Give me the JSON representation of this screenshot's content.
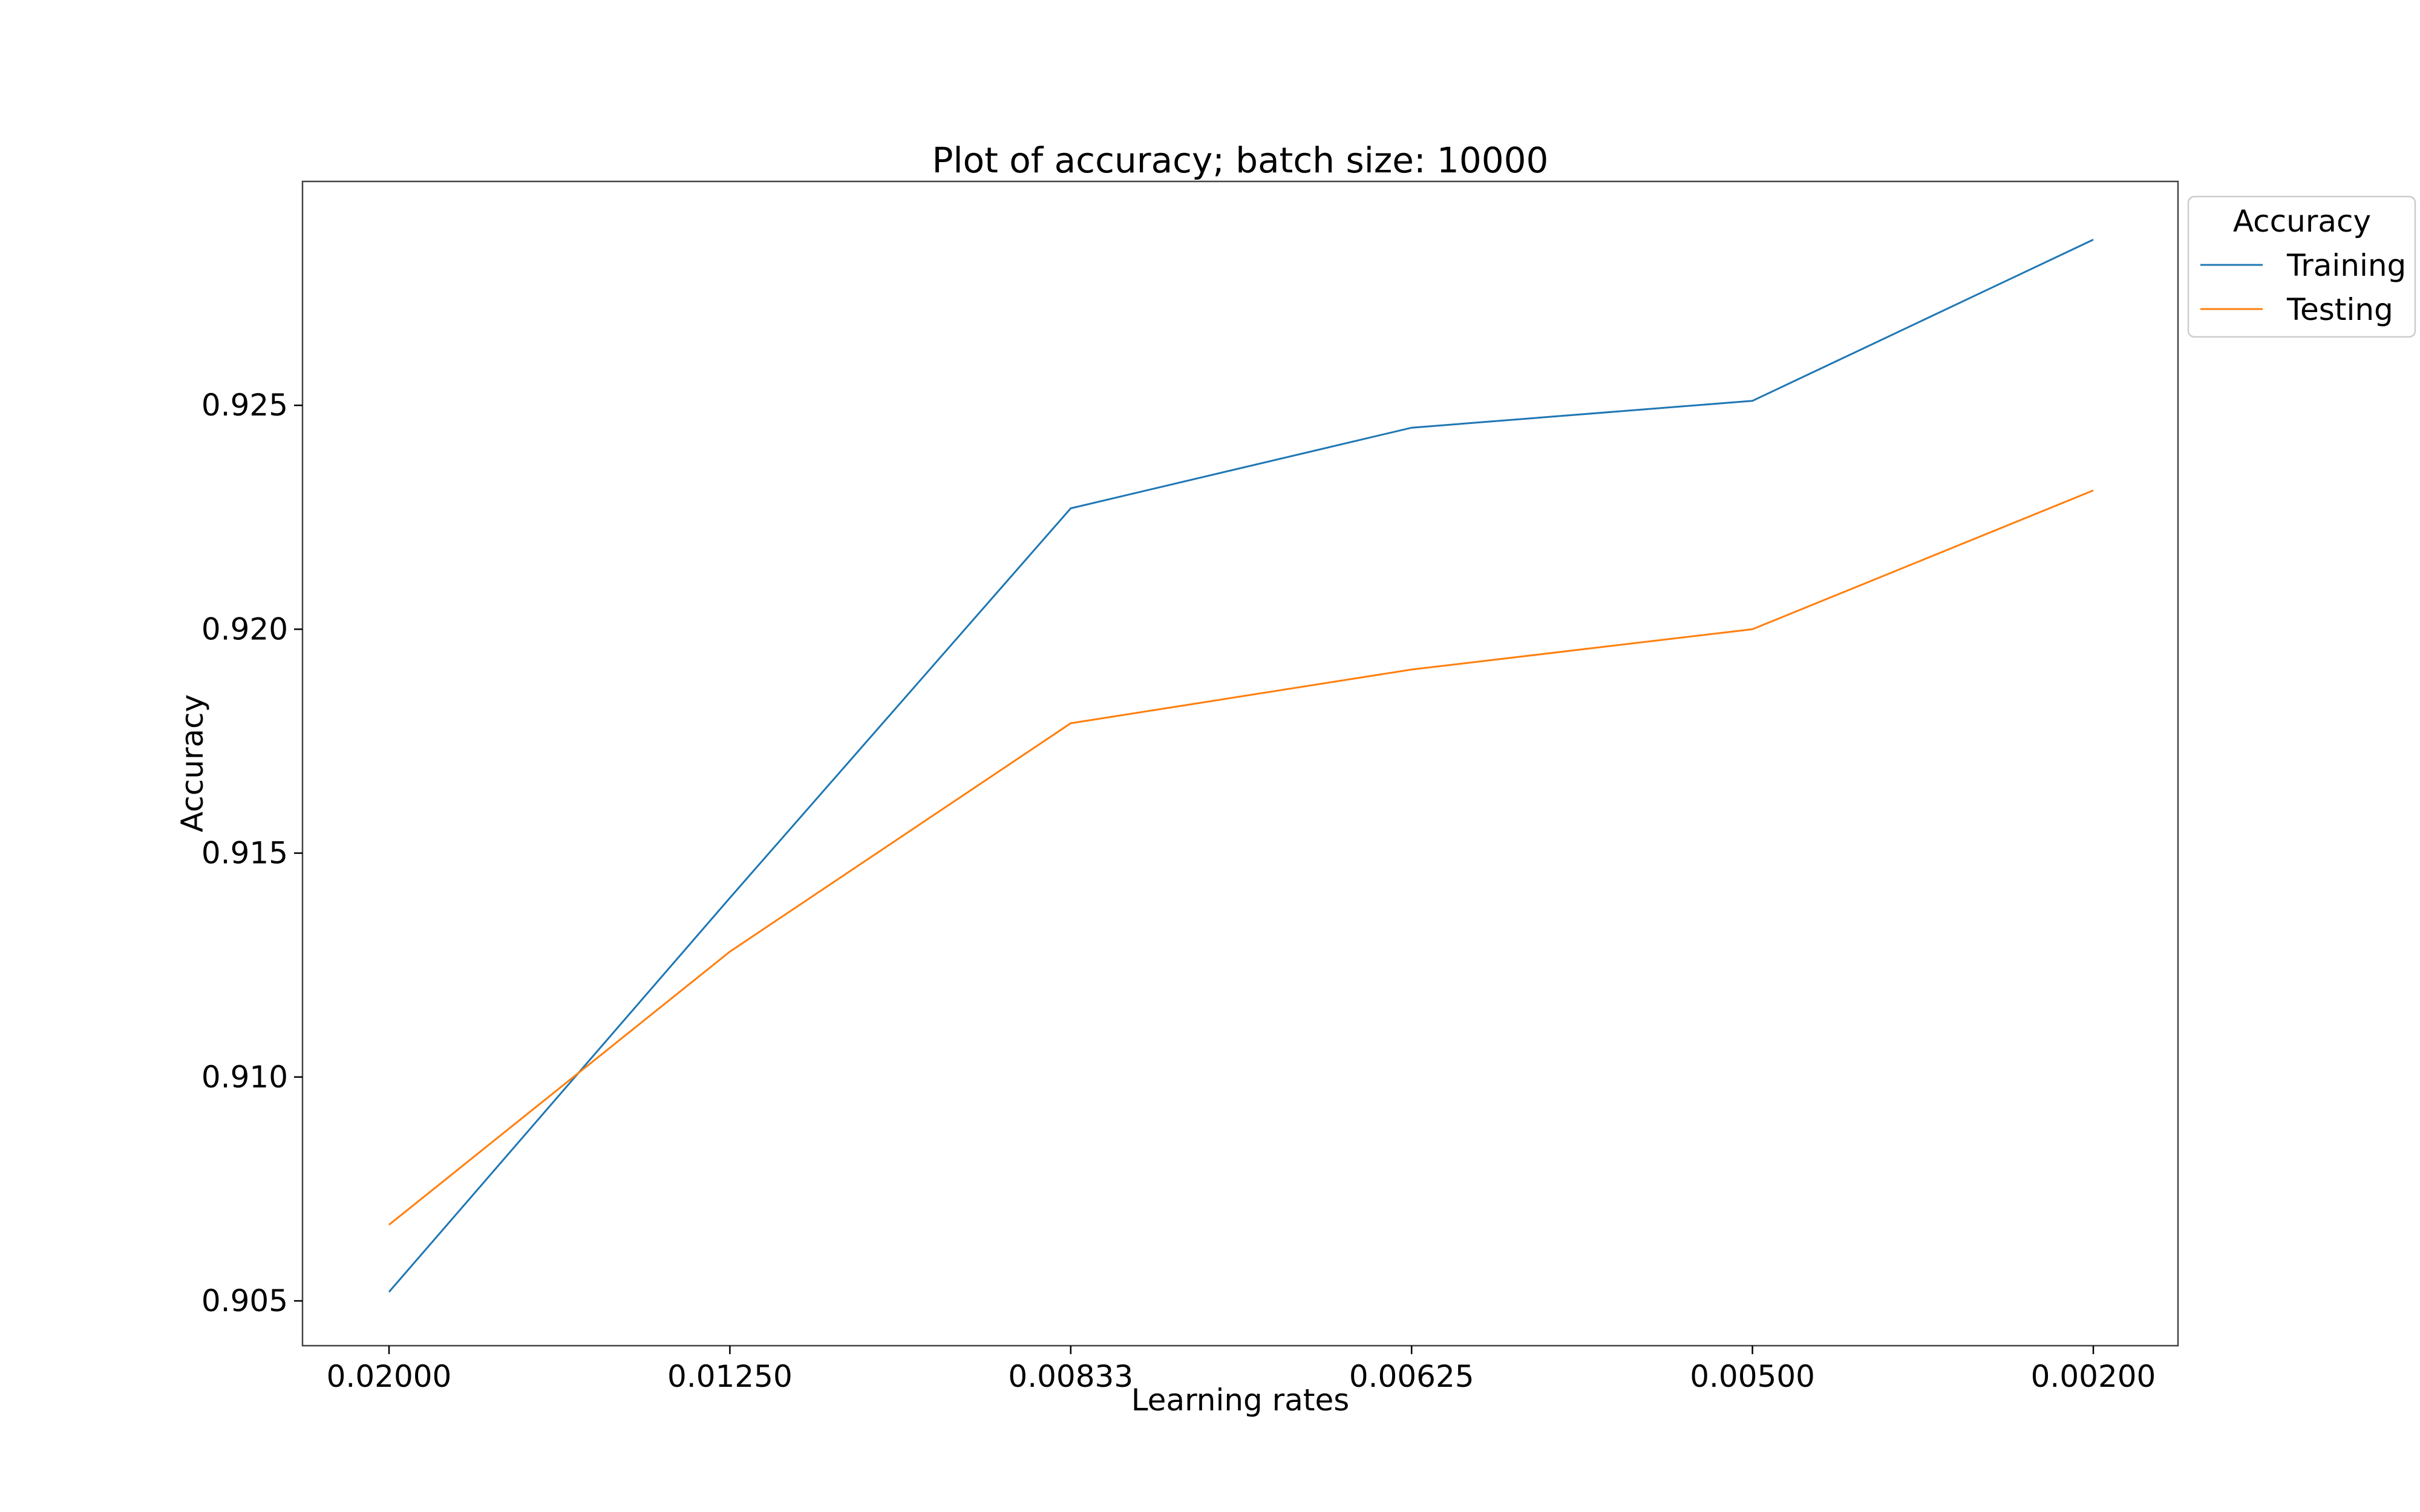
{
  "chart_data": {
    "type": "line",
    "title": "Plot of accuracy; batch size: 10000",
    "xlabel": "Learning rates",
    "ylabel": "Accuracy",
    "categories": [
      "0.02000",
      "0.01250",
      "0.00833",
      "0.00625",
      "0.00500",
      "0.00200"
    ],
    "ylim": [
      0.904,
      0.93
    ],
    "yticks": [
      "0.905",
      "0.910",
      "0.915",
      "0.920",
      "0.925"
    ],
    "legend": {
      "title": "Accuracy",
      "position": "outside-top-right"
    },
    "grid": false,
    "series": [
      {
        "name": "Training",
        "color": "#1f77b4",
        "values": [
          0.9052,
          0.914,
          0.9227,
          0.9245,
          0.9251,
          0.9287
        ]
      },
      {
        "name": "Testing",
        "color": "#ff7f0e",
        "values": [
          0.9067,
          0.9128,
          0.9179,
          0.9191,
          0.92,
          0.9231
        ]
      }
    ]
  }
}
